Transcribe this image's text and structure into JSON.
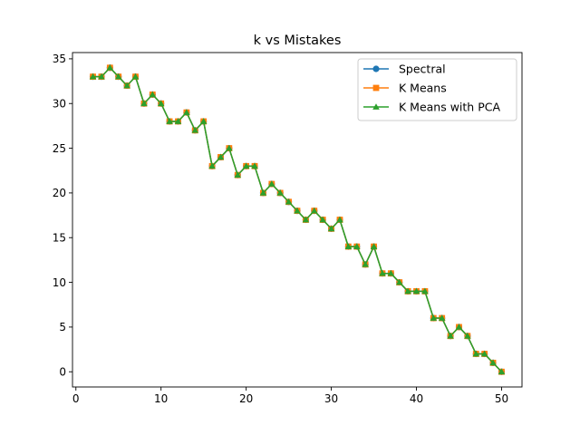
{
  "chart_data": {
    "type": "line",
    "title": "k vs Mistakes",
    "xlabel": "",
    "ylabel": "",
    "xlim": [
      -0.4,
      52.4
    ],
    "ylim": [
      -1.7,
      35.7
    ],
    "xticks": [
      0,
      10,
      20,
      30,
      40,
      50
    ],
    "yticks": [
      0,
      5,
      10,
      15,
      20,
      25,
      30,
      35
    ],
    "grid": false,
    "legend_position": "top-right",
    "x": [
      2,
      3,
      4,
      5,
      6,
      7,
      8,
      9,
      10,
      11,
      12,
      13,
      14,
      15,
      16,
      17,
      18,
      19,
      20,
      21,
      22,
      23,
      24,
      25,
      26,
      27,
      28,
      29,
      30,
      31,
      32,
      33,
      34,
      35,
      36,
      37,
      38,
      39,
      40,
      41,
      42,
      43,
      44,
      45,
      46,
      47,
      48,
      49,
      50
    ],
    "series": [
      {
        "name": "Spectral",
        "color": "#1f77b4",
        "marker": "circle",
        "values": [
          33,
          33,
          34,
          33,
          32,
          33,
          30,
          31,
          30,
          28,
          28,
          29,
          27,
          28,
          23,
          24,
          25,
          22,
          23,
          23,
          20,
          21,
          20,
          19,
          18,
          17,
          18,
          17,
          16,
          17,
          14,
          14,
          12,
          14,
          11,
          11,
          10,
          9,
          9,
          9,
          6,
          6,
          4,
          5,
          4,
          2,
          2,
          1,
          0
        ]
      },
      {
        "name": "K Means",
        "color": "#ff7f0e",
        "marker": "square",
        "values": [
          33,
          33,
          34,
          33,
          32,
          33,
          30,
          31,
          30,
          28,
          28,
          29,
          27,
          28,
          23,
          24,
          25,
          22,
          23,
          23,
          20,
          21,
          20,
          19,
          18,
          17,
          18,
          17,
          16,
          17,
          14,
          14,
          12,
          14,
          11,
          11,
          10,
          9,
          9,
          9,
          6,
          6,
          4,
          5,
          4,
          2,
          2,
          1,
          0
        ]
      },
      {
        "name": "K Means with PCA",
        "color": "#2ca02c",
        "marker": "triangle",
        "values": [
          33,
          33,
          34,
          33,
          32,
          33,
          30,
          31,
          30,
          28,
          28,
          29,
          27,
          28,
          23,
          24,
          25,
          22,
          23,
          23,
          20,
          21,
          20,
          19,
          18,
          17,
          18,
          17,
          16,
          17,
          14,
          14,
          12,
          14,
          11,
          11,
          10,
          9,
          9,
          9,
          6,
          6,
          4,
          5,
          4,
          2,
          2,
          1,
          0
        ]
      }
    ]
  }
}
